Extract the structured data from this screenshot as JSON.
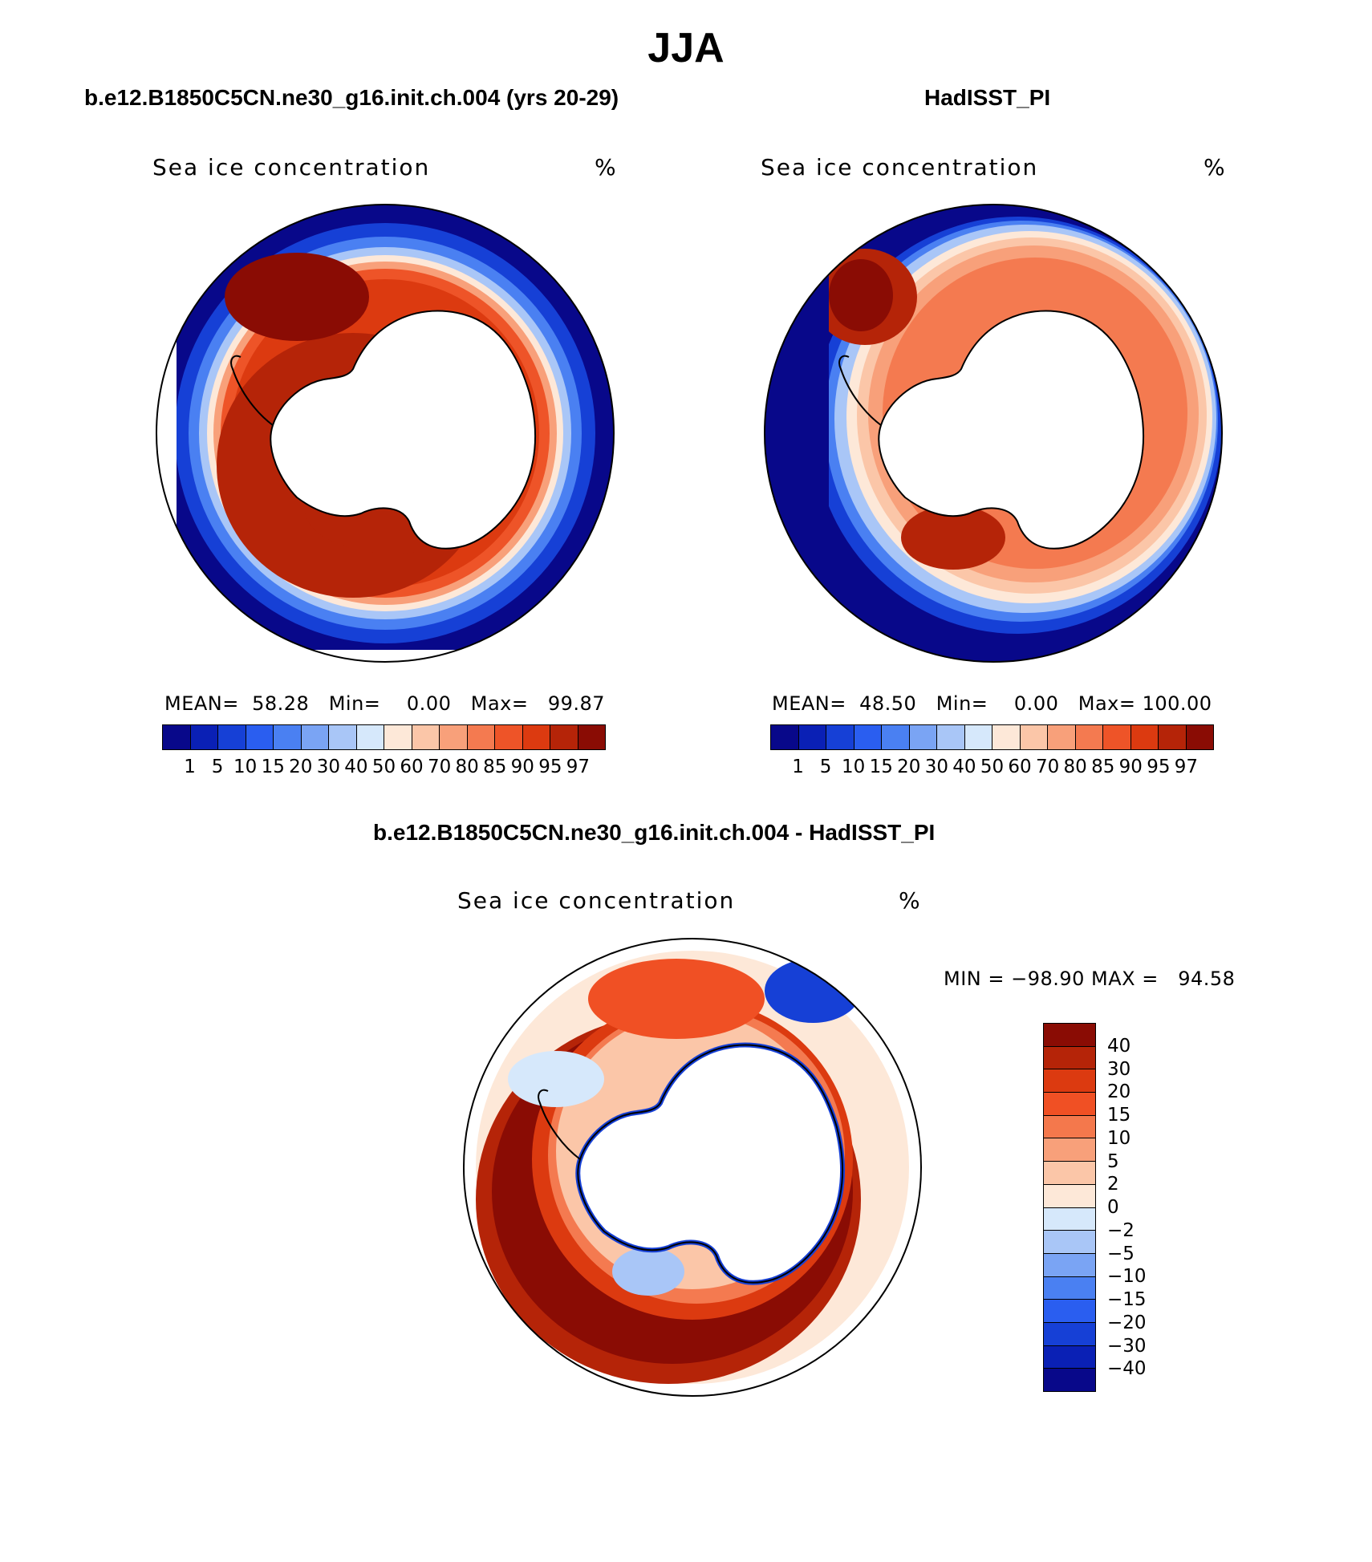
{
  "figure": {
    "title": "JJA"
  },
  "panel_left": {
    "title": "b.e12.B1850C5CN.ne30_g16.init.ch.004 (yrs 20-29)",
    "variable": "Sea ice concentration",
    "unit": "%",
    "stats": "MEAN=  58.28   Min=    0.00   Max=   99.87"
  },
  "panel_right": {
    "title": "HadISST_PI",
    "variable": "Sea ice concentration",
    "unit": "%",
    "stats": "MEAN=  48.50   Min=    0.00   Max= 100.00"
  },
  "panel_diff": {
    "title": "b.e12.B1850C5CN.ne30_g16.init.ch.004 - HadISST_PI",
    "variable": "Sea ice concentration",
    "unit": "%",
    "stats": "MIN = −98.90 MAX =   94.58"
  },
  "colorbar_abs": {
    "labels": [
      "1",
      "5",
      "10",
      "15",
      "20",
      "30",
      "40",
      "50",
      "60",
      "70",
      "80",
      "85",
      "90",
      "95",
      "97"
    ],
    "colors": [
      "#08088a",
      "#0a20b5",
      "#1640d6",
      "#2a5ef0",
      "#4a80f2",
      "#7aa4f4",
      "#a9c6f7",
      "#d6e8fb",
      "#fde8d8",
      "#fbc6a8",
      "#f8a07a",
      "#f47a50",
      "#ee5428",
      "#dc3a10",
      "#b52408",
      "#8a0c04"
    ]
  },
  "colorbar_diff": {
    "labels": [
      "40",
      "30",
      "20",
      "15",
      "10",
      "5",
      "2",
      "0",
      "−2",
      "−5",
      "−10",
      "−15",
      "−20",
      "−30",
      "−40"
    ],
    "colors": [
      "#8a0c04",
      "#b52408",
      "#dc3a10",
      "#f05024",
      "#f4784c",
      "#f8a07a",
      "#fbc6a8",
      "#fde8d8",
      "#d6e8fb",
      "#a9c6f7",
      "#7aa4f4",
      "#4a80f2",
      "#2a5ef0",
      "#1640d6",
      "#0a20b5",
      "#08088a"
    ]
  }
}
